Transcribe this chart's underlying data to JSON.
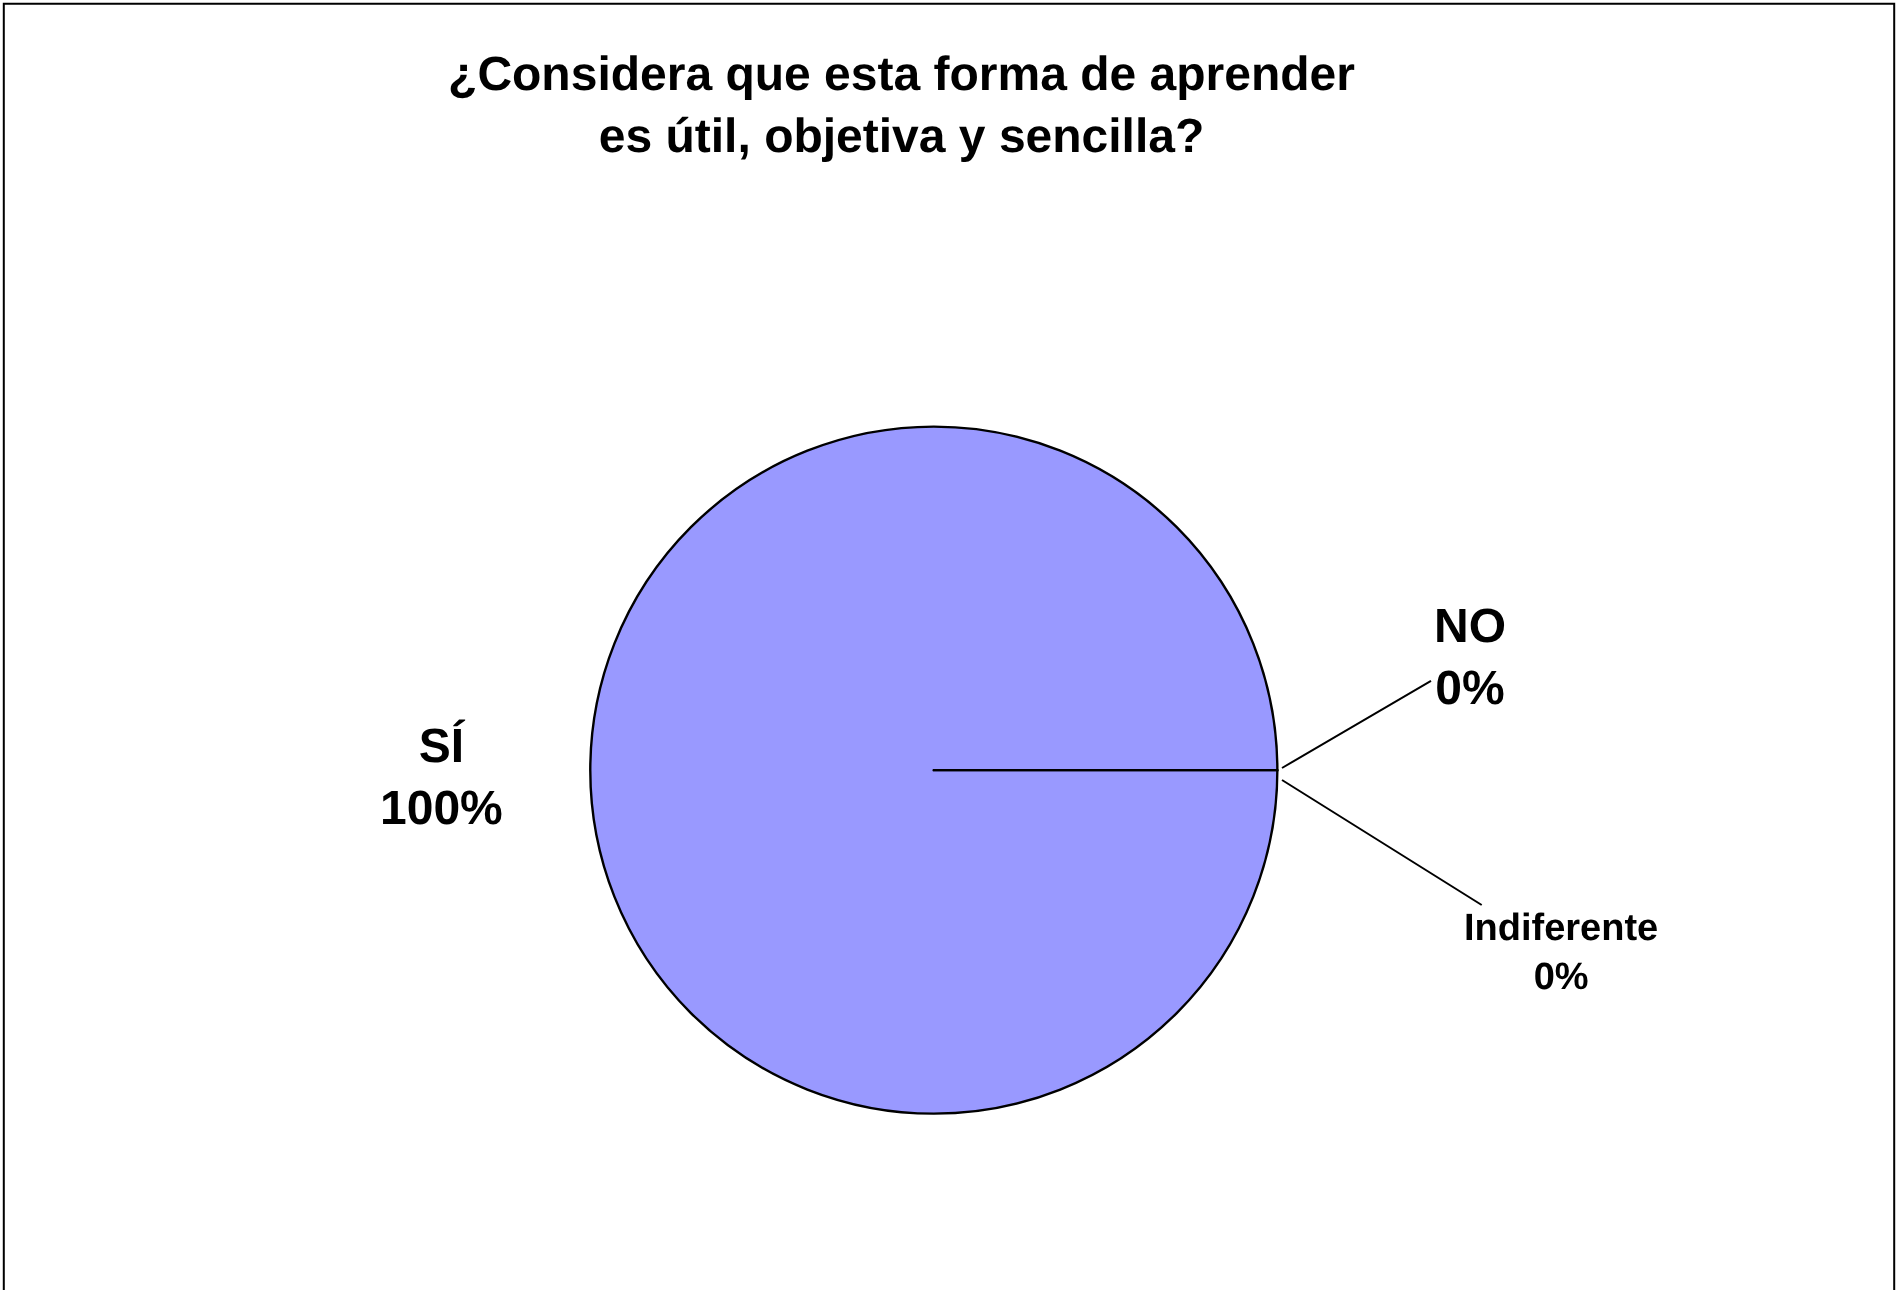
{
  "chart_data": {
    "type": "pie",
    "title": "¿Considera que esta forma de aprender\nes útil, objetiva y sencilla?",
    "categories": [
      "SÍ",
      "NO",
      "Indiferente"
    ],
    "values": [
      100,
      0,
      0
    ],
    "value_labels": [
      "100%",
      "0%",
      "0%"
    ],
    "colors": [
      "#9999ff",
      "#993366",
      "#ffffcc"
    ],
    "legend": false
  }
}
